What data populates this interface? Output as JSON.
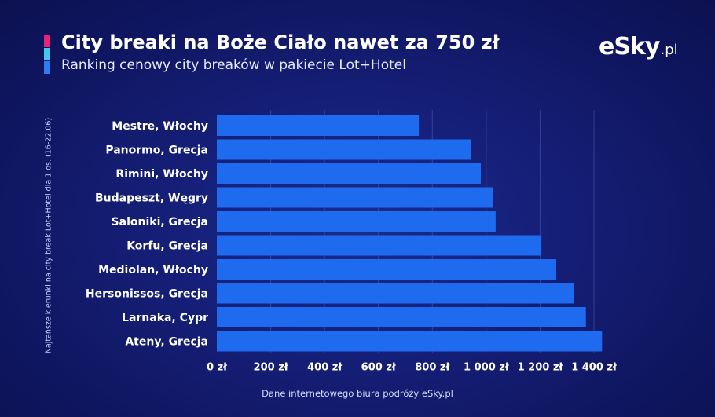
{
  "header": {
    "title": "City breaki na Boże Ciało nawet za 750 zł",
    "subtitle": "Ranking cenowy city breaków w pakiecie Lot+Hotel",
    "accent_colors": [
      "#e8217a",
      "#44c6f0",
      "#2e7cf6"
    ]
  },
  "logo": {
    "main": "eSky",
    "tld": ".pl"
  },
  "chart_data": {
    "type": "bar",
    "orientation": "horizontal",
    "ylabel": "Najtańsze kierunki na city break Lot+Hotel dla 1 os. (16-22.06)",
    "categories": [
      "Mestre, Włochy",
      "Panormo, Grecja",
      "Rimini, Włochy",
      "Budapeszt, Węgry",
      "Saloniki, Grecja",
      "Korfu, Grecja",
      "Mediolan, Włochy",
      "Hersonissos, Grecja",
      "Larnaka, Cypr",
      "Ateny, Grecja"
    ],
    "values": [
      750,
      945,
      980,
      1025,
      1035,
      1205,
      1260,
      1325,
      1370,
      1430
    ],
    "xlim": [
      0,
      1400
    ],
    "ticks": [
      0,
      200,
      400,
      600,
      800,
      1000,
      1200,
      1400
    ],
    "tick_labels": [
      "0 zł",
      "200 zł",
      "400 zł",
      "600 zł",
      "800 zł",
      "1 000 zł",
      "1 200 zł",
      "1 400 zł"
    ],
    "bar_color": "#1f6bf0",
    "grid": true
  },
  "footer": {
    "source": "Dane internetowego biura podróży eSky.pl"
  }
}
